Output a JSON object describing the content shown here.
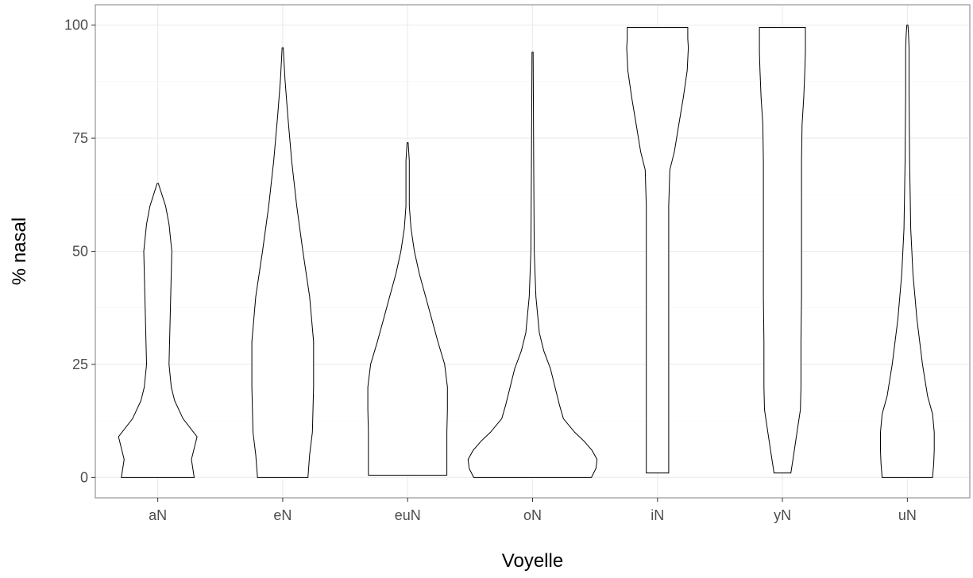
{
  "chart_data": {
    "type": "violin",
    "categories": [
      "aN",
      "eN",
      "euN",
      "oN",
      "iN",
      "yN",
      "uN"
    ],
    "xlabel": "Voyelle",
    "ylabel": "% nasal",
    "ylim": [
      -4.5,
      104.5
    ],
    "yticks": [
      0,
      25,
      50,
      75,
      100
    ],
    "grid": true,
    "violins": [
      {
        "category": "aN",
        "profile": [
          [
            0,
            6.5
          ],
          [
            4,
            6
          ],
          [
            9,
            7
          ],
          [
            13,
            4.5
          ],
          [
            17,
            3
          ],
          [
            20,
            2.4
          ],
          [
            25,
            2
          ],
          [
            30,
            2.1
          ],
          [
            40,
            2.3
          ],
          [
            50,
            2.5
          ],
          [
            56,
            2
          ],
          [
            60,
            1.4
          ],
          [
            65,
            0.1
          ]
        ]
      },
      {
        "category": "eN",
        "profile": [
          [
            0,
            4.5
          ],
          [
            5,
            4.8
          ],
          [
            10,
            5.3
          ],
          [
            20,
            5.5
          ],
          [
            30,
            5.5
          ],
          [
            40,
            4.8
          ],
          [
            50,
            3.6
          ],
          [
            60,
            2.5
          ],
          [
            70,
            1.6
          ],
          [
            80,
            0.9
          ],
          [
            88,
            0.4
          ],
          [
            95,
            0.1
          ]
        ]
      },
      {
        "category": "euN",
        "profile": [
          [
            0.5,
            7
          ],
          [
            5,
            7
          ],
          [
            10,
            7
          ],
          [
            15,
            7.1
          ],
          [
            20,
            7.1
          ],
          [
            25,
            6.6
          ],
          [
            30,
            5.4
          ],
          [
            35,
            4.3
          ],
          [
            40,
            3.2
          ],
          [
            45,
            2.1
          ],
          [
            50,
            1.2
          ],
          [
            55,
            0.6
          ],
          [
            60,
            0.3
          ],
          [
            66,
            0.3
          ],
          [
            70,
            0.3
          ],
          [
            74,
            0.1
          ]
        ]
      },
      {
        "category": "oN",
        "profile": [
          [
            0,
            10.5
          ],
          [
            2,
            11.3
          ],
          [
            4,
            11.5
          ],
          [
            6,
            10.6
          ],
          [
            8,
            9.2
          ],
          [
            10,
            7.5
          ],
          [
            13,
            5.5
          ],
          [
            16,
            4.8
          ],
          [
            20,
            4
          ],
          [
            24,
            3.2
          ],
          [
            28,
            2
          ],
          [
            32,
            1.2
          ],
          [
            40,
            0.6
          ],
          [
            50,
            0.3
          ],
          [
            70,
            0.2
          ],
          [
            94,
            0.1
          ]
        ]
      },
      {
        "category": "iN",
        "profile": [
          [
            1,
            2
          ],
          [
            10,
            2
          ],
          [
            30,
            2
          ],
          [
            50,
            2
          ],
          [
            60,
            2
          ],
          [
            68,
            2.2
          ],
          [
            72,
            3
          ],
          [
            78,
            3.8
          ],
          [
            84,
            4.6
          ],
          [
            90,
            5.3
          ],
          [
            95,
            5.5
          ],
          [
            97,
            5.4
          ],
          [
            99.5,
            5.4
          ]
        ]
      },
      {
        "category": "yN",
        "profile": [
          [
            1,
            1.5
          ],
          [
            5,
            2
          ],
          [
            10,
            2.6
          ],
          [
            15,
            3.2
          ],
          [
            20,
            3.3
          ],
          [
            30,
            3.3
          ],
          [
            40,
            3.4
          ],
          [
            50,
            3.4
          ],
          [
            60,
            3.4
          ],
          [
            70,
            3.4
          ],
          [
            78,
            3.5
          ],
          [
            84,
            3.8
          ],
          [
            90,
            4
          ],
          [
            94,
            4.1
          ],
          [
            97,
            4.1
          ],
          [
            99.5,
            4.1
          ]
        ]
      },
      {
        "category": "uN",
        "profile": [
          [
            0,
            4.5
          ],
          [
            3,
            4.7
          ],
          [
            6,
            4.8
          ],
          [
            10,
            4.8
          ],
          [
            14,
            4.5
          ],
          [
            18,
            3.6
          ],
          [
            25,
            2.7
          ],
          [
            35,
            1.7
          ],
          [
            45,
            1
          ],
          [
            55,
            0.6
          ],
          [
            70,
            0.4
          ],
          [
            85,
            0.3
          ],
          [
            95,
            0.3
          ],
          [
            98,
            0.2
          ],
          [
            100,
            0.1
          ]
        ]
      }
    ]
  }
}
